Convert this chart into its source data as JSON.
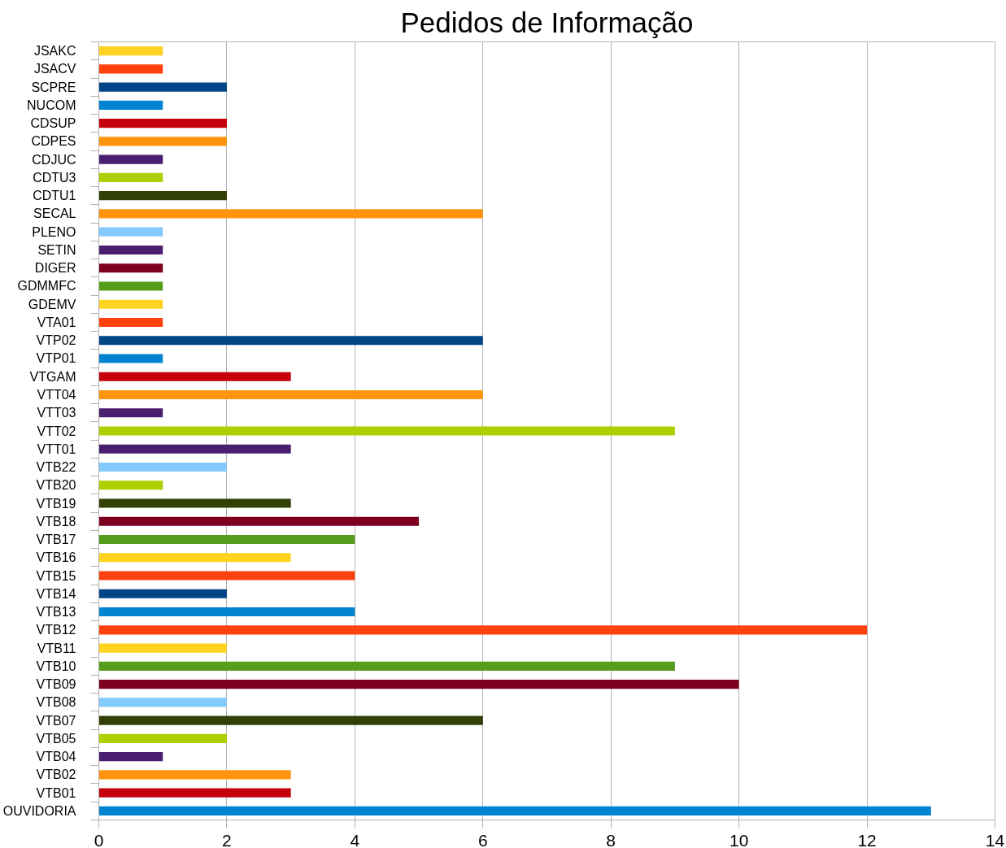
{
  "chart_data": {
    "type": "bar",
    "title": "Pedidos de Informação",
    "orientation": "horizontal",
    "categories": [
      "JSAKC",
      "JSACV",
      "SCPRE",
      "NUCOM",
      "CDSUP",
      "CDPES",
      "CDJUC",
      "CDTU3",
      "CDTU1",
      "SECAL",
      "PLENO",
      "SETIN",
      "DIGER",
      "GDMMFC",
      "GDEMV",
      "VTA01",
      "VTP02",
      "VTP01",
      "VTGAM",
      "VTT04",
      "VTT03",
      "VTT02",
      "VTT01",
      "VTB22",
      "VTB20",
      "VTB19",
      "VTB18",
      "VTB17",
      "VTB16",
      "VTB15",
      "VTB14",
      "VTB13",
      "VTB12",
      "VTB11",
      "VTB10",
      "VTB09",
      "VTB08",
      "VTB07",
      "VTB05",
      "VTB04",
      "VTB02",
      "VTB01",
      "OUVIDORIA"
    ],
    "values": [
      1,
      1,
      2,
      1,
      2,
      2,
      1,
      1,
      2,
      6,
      1,
      1,
      1,
      1,
      1,
      1,
      6,
      1,
      3,
      6,
      1,
      9,
      3,
      2,
      1,
      3,
      5,
      4,
      3,
      4,
      2,
      4,
      12,
      2,
      9,
      10,
      2,
      6,
      2,
      1,
      3,
      3,
      13
    ],
    "colors": [
      "#ffd320",
      "#ff420e",
      "#004586",
      "#0084d1",
      "#c5000b",
      "#ff950e",
      "#4b1f6f",
      "#aecf00",
      "#314004",
      "#ff950e",
      "#83caff",
      "#4b1f6f",
      "#7e0021",
      "#579d1c",
      "#ffd320",
      "#ff420e",
      "#004586",
      "#0084d1",
      "#c5000b",
      "#ff950e",
      "#4b1f6f",
      "#aecf00",
      "#4b1f6f",
      "#83caff",
      "#aecf00",
      "#314004",
      "#7e0021",
      "#579d1c",
      "#ffd320",
      "#ff420e",
      "#004586",
      "#0084d1",
      "#ff420e",
      "#ffd320",
      "#579d1c",
      "#7e0021",
      "#83caff",
      "#314004",
      "#aecf00",
      "#4b1f6f",
      "#ff950e",
      "#c5000b",
      "#0084d1"
    ],
    "xlim": [
      0,
      14
    ],
    "xticks": [
      0,
      2,
      4,
      6,
      8,
      10,
      12,
      14
    ],
    "grid": "x"
  }
}
